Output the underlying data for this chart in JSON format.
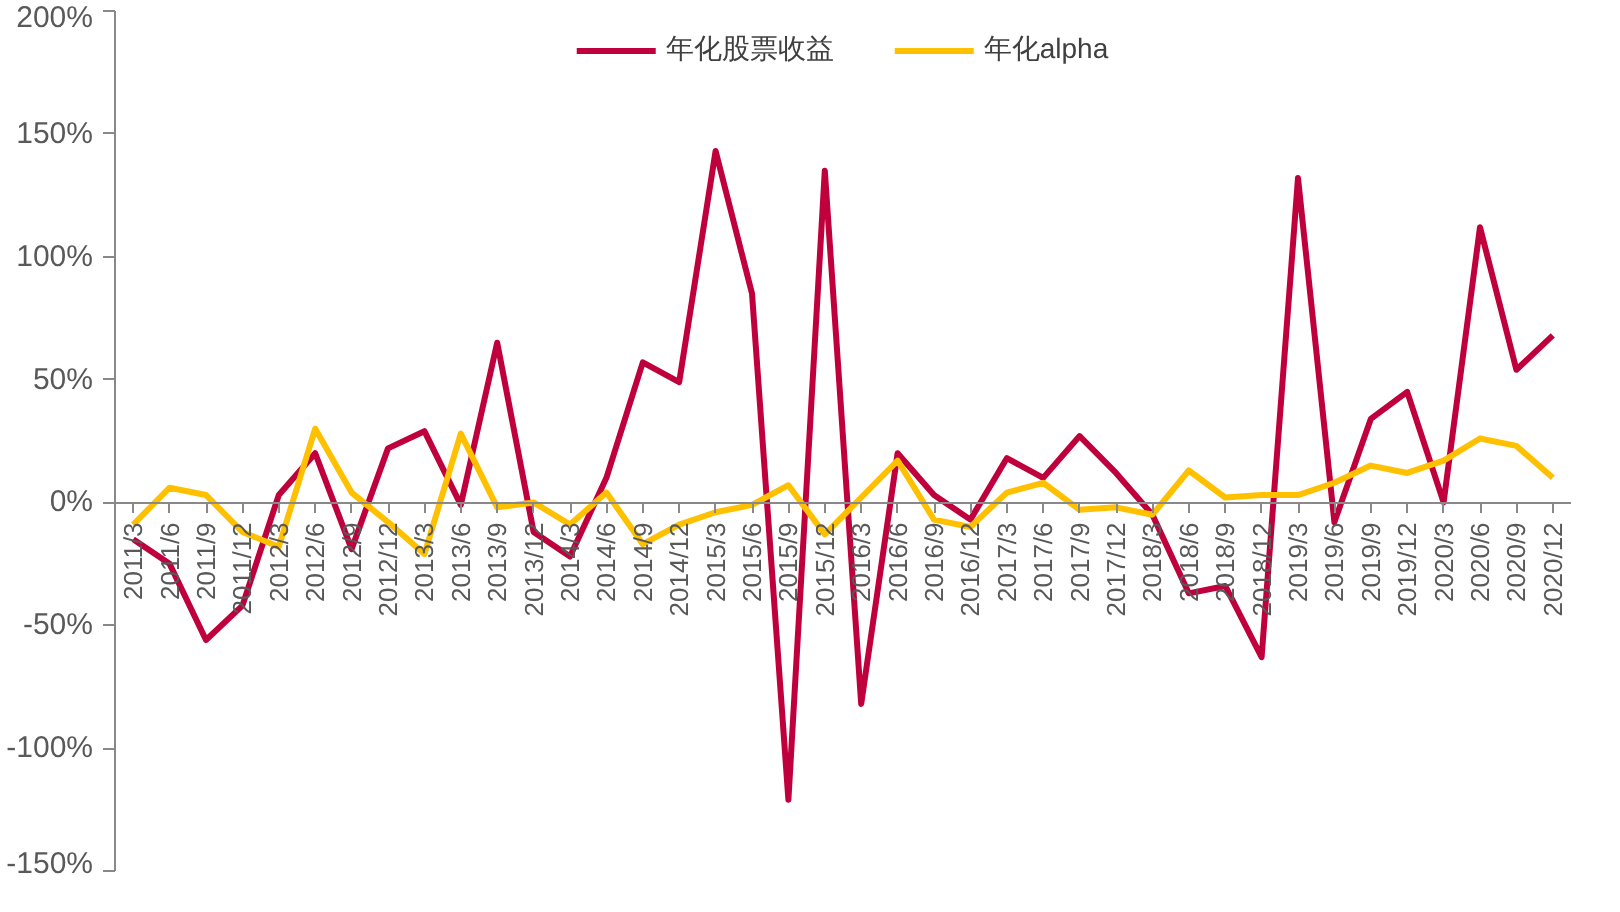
{
  "chart_data": {
    "type": "line",
    "categories": [
      "2011/3",
      "2011/6",
      "2011/9",
      "2011/12",
      "2012/3",
      "2012/6",
      "2012/9",
      "2012/12",
      "2013/3",
      "2013/6",
      "2013/9",
      "2013/12",
      "2014/3",
      "2014/6",
      "2014/9",
      "2014/12",
      "2015/3",
      "2015/6",
      "2015/9",
      "2015/12",
      "2016/3",
      "2016/6",
      "2016/9",
      "2016/12",
      "2017/3",
      "2017/6",
      "2017/9",
      "2017/12",
      "2018/3",
      "2018/6",
      "2018/9",
      "2018/12",
      "2019/3",
      "2019/6",
      "2019/9",
      "2019/12",
      "2020/3",
      "2020/6",
      "2020/9",
      "2020/12"
    ],
    "series": [
      {
        "name": "年化股票收益",
        "color": "#c0003c",
        "values": [
          -15,
          -25,
          -56,
          -42,
          3,
          20,
          -19,
          22,
          29,
          -1,
          65,
          -12,
          -22,
          10,
          57,
          49,
          143,
          85,
          -121,
          135,
          -82,
          20,
          3,
          -7,
          18,
          10,
          27,
          12,
          -5,
          -37,
          -34,
          -63,
          132,
          -8,
          34,
          45,
          0,
          112,
          54,
          68
        ]
      },
      {
        "name": "年化alpha",
        "color": "#ffc000",
        "values": [
          -9,
          6,
          3,
          -12,
          -18,
          30,
          4,
          -8,
          -21,
          28,
          -2,
          0,
          -9,
          4,
          -17,
          -9,
          -4,
          -1,
          7,
          -13,
          2,
          17,
          -7,
          -10,
          4,
          8,
          -3,
          -2,
          -5,
          13,
          2,
          3,
          3,
          8,
          15,
          12,
          17,
          26,
          23,
          10
        ]
      }
    ],
    "ylim": [
      -150,
      200
    ],
    "yticks": [
      {
        "value": -150,
        "label": "-150%"
      },
      {
        "value": -100,
        "label": "-100%"
      },
      {
        "value": -50,
        "label": "-50%"
      },
      {
        "value": 0,
        "label": "0%"
      },
      {
        "value": 50,
        "label": "50%"
      },
      {
        "value": 100,
        "label": "100%"
      },
      {
        "value": 150,
        "label": "150%"
      },
      {
        "value": 200,
        "label": "200%"
      }
    ],
    "grid": false,
    "legend": "top",
    "marker": "none",
    "line_style": "solid"
  }
}
